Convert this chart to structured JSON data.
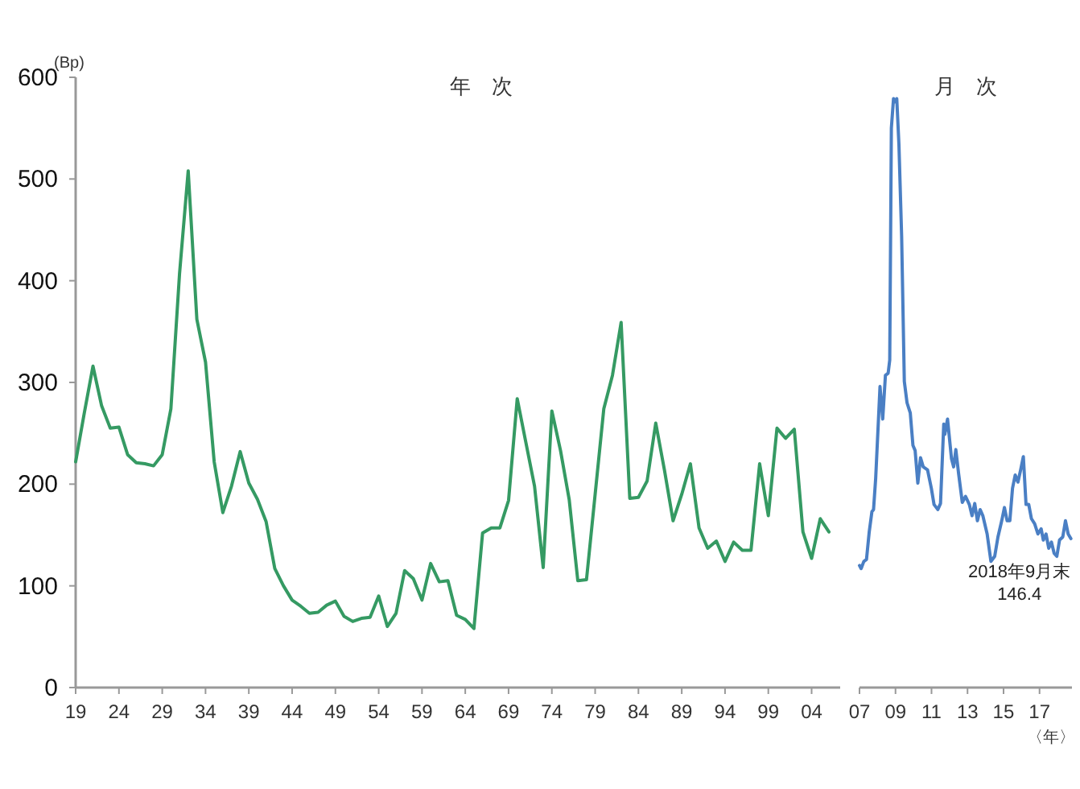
{
  "chart_data": [
    {
      "type": "line",
      "title": "年 次",
      "ylabel": "(Bp)",
      "grid": false,
      "marker": "none",
      "line_style": "solid",
      "x": [
        1919,
        1920,
        1921,
        1922,
        1923,
        1924,
        1925,
        1926,
        1927,
        1928,
        1929,
        1930,
        1931,
        1932,
        1933,
        1934,
        1935,
        1936,
        1937,
        1938,
        1939,
        1940,
        1941,
        1942,
        1943,
        1944,
        1945,
        1946,
        1947,
        1948,
        1949,
        1950,
        1951,
        1952,
        1953,
        1954,
        1955,
        1956,
        1957,
        1958,
        1959,
        1960,
        1961,
        1962,
        1963,
        1964,
        1965,
        1966,
        1967,
        1968,
        1969,
        1970,
        1971,
        1972,
        1973,
        1974,
        1975,
        1976,
        1977,
        1978,
        1979,
        1980,
        1981,
        1982,
        1983,
        1984,
        1985,
        1986,
        1987,
        1988,
        1989,
        1990,
        1991,
        1992,
        1993,
        1994,
        1995,
        1996,
        1997,
        1998,
        1999,
        2000,
        2001,
        2002,
        2003,
        2004,
        2005,
        2006
      ],
      "series": [
        {
          "color": "#359a63",
          "values": [
            222,
            270,
            316,
            277,
            255,
            256,
            229,
            221,
            220,
            218,
            229,
            274,
            407,
            508,
            362,
            320,
            222,
            172,
            198,
            232,
            201,
            185,
            163,
            117,
            100,
            86,
            80,
            73,
            74,
            81,
            85,
            70,
            65,
            68,
            69,
            90,
            60,
            73,
            115,
            107,
            86,
            122,
            104,
            105,
            71,
            67,
            58,
            152,
            157,
            157,
            184,
            284,
            241,
            198,
            118,
            272,
            233,
            185,
            105,
            106,
            190,
            274,
            307,
            359,
            186,
            187,
            203,
            260,
            214,
            164,
            190,
            220,
            157,
            137,
            144,
            124,
            143,
            135,
            135,
            220,
            169,
            255,
            245,
            254,
            153,
            127,
            166,
            153
          ]
        }
      ],
      "xlim": [
        1919,
        2007.3
      ],
      "ylim": [
        0,
        600
      ],
      "xticks": [
        {
          "value": 1919,
          "label": "19"
        },
        {
          "value": 1924,
          "label": "24"
        },
        {
          "value": 1929,
          "label": "29"
        },
        {
          "value": 1934,
          "label": "34"
        },
        {
          "value": 1939,
          "label": "39"
        },
        {
          "value": 1944,
          "label": "44"
        },
        {
          "value": 1949,
          "label": "49"
        },
        {
          "value": 1954,
          "label": "54"
        },
        {
          "value": 1959,
          "label": "59"
        },
        {
          "value": 1964,
          "label": "64"
        },
        {
          "value": 1969,
          "label": "69"
        },
        {
          "value": 1974,
          "label": "74"
        },
        {
          "value": 1979,
          "label": "79"
        },
        {
          "value": 1984,
          "label": "84"
        },
        {
          "value": 1989,
          "label": "89"
        },
        {
          "value": 1994,
          "label": "94"
        },
        {
          "value": 1999,
          "label": "99"
        },
        {
          "value": 2004,
          "label": "04"
        }
      ],
      "yticks": [
        0,
        100,
        200,
        300,
        400,
        500,
        600
      ]
    },
    {
      "type": "line",
      "title": "月 次",
      "xlabel": "〈年〉",
      "grid": false,
      "marker": "none",
      "line_style": "solid",
      "tick_labels": "x",
      "x": [
        2007.0,
        2007.09,
        2007.24,
        2007.39,
        2007.54,
        2007.69,
        2007.78,
        2007.9,
        2008.14,
        2008.29,
        2008.44,
        2008.59,
        2008.68,
        2008.77,
        2008.89,
        2008.98,
        2009.07,
        2009.19,
        2009.34,
        2009.49,
        2009.64,
        2009.82,
        2009.97,
        2010.09,
        2010.24,
        2010.39,
        2010.54,
        2010.78,
        2010.99,
        2011.14,
        2011.35,
        2011.5,
        2011.68,
        2011.74,
        2011.89,
        2012.11,
        2012.23,
        2012.35,
        2012.5,
        2012.71,
        2012.89,
        2013.1,
        2013.25,
        2013.4,
        2013.55,
        2013.7,
        2013.85,
        2014.09,
        2014.3,
        2014.51,
        2014.69,
        2014.9,
        2015.05,
        2015.2,
        2015.35,
        2015.5,
        2015.65,
        2015.8,
        2015.95,
        2016.1,
        2016.25,
        2016.4,
        2016.55,
        2016.73,
        2016.91,
        2017.09,
        2017.21,
        2017.36,
        2017.51,
        2017.66,
        2017.81,
        2017.96,
        2018.11,
        2018.29,
        2018.44,
        2018.59,
        2018.74
      ],
      "series": [
        {
          "color": "#4a7fc4",
          "values": [
            120,
            117,
            124,
            126,
            153,
            173,
            175,
            206,
            296,
            264,
            307,
            309,
            322,
            550,
            579,
            576,
            579,
            534,
            444,
            301,
            280,
            270,
            238,
            233,
            201,
            226,
            217,
            214,
            196,
            180,
            175,
            181,
            259,
            249,
            264,
            225,
            217,
            234,
            211,
            182,
            188,
            180,
            169,
            181,
            164,
            175,
            169,
            151,
            124,
            129,
            148,
            164,
            177,
            164,
            164,
            196,
            209,
            202,
            214,
            227,
            180,
            180,
            166,
            161,
            151,
            156,
            145,
            151,
            137,
            143,
            132,
            129,
            145,
            148,
            164,
            151,
            146.4
          ]
        }
      ],
      "xlim": [
        2007,
        2018.8
      ],
      "ylim": [
        0,
        600
      ],
      "xticks": [
        {
          "value": 2007,
          "label": "07"
        },
        {
          "value": 2009,
          "label": "09"
        },
        {
          "value": 2011,
          "label": "11"
        },
        {
          "value": 2013,
          "label": "13"
        },
        {
          "value": 2015,
          "label": "15"
        },
        {
          "value": 2017,
          "label": "17"
        }
      ],
      "annotations": [
        {
          "text": "2018年9月末\n146.4",
          "x": 2018.74,
          "y": 146.4
        }
      ]
    }
  ]
}
